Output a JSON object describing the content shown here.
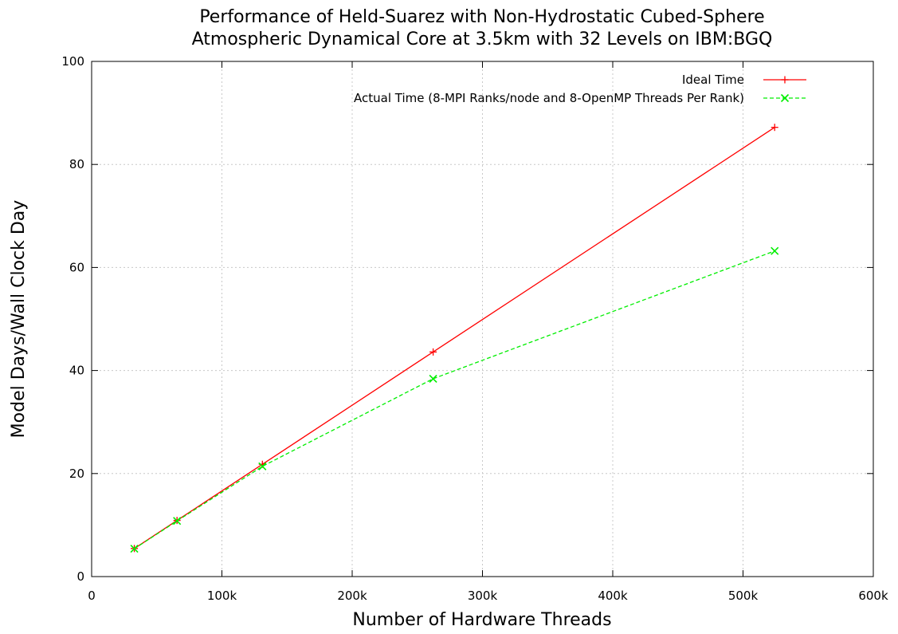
{
  "chart_data": {
    "type": "line",
    "title_lines": [
      "Performance of Held-Suarez with Non-Hydrostatic Cubed-Sphere",
      "Atmospheric Dynamical Core at 3.5km with 32 Levels on IBM:BGQ"
    ],
    "xlabel": "Number of Hardware Threads",
    "ylabel": "Model Days/Wall Clock Day",
    "xlim": [
      0,
      600000
    ],
    "ylim": [
      0,
      100
    ],
    "x_ticks": [
      0,
      100000,
      200000,
      300000,
      400000,
      500000,
      600000
    ],
    "x_tick_labels": [
      "0",
      "100k",
      "200k",
      "300k",
      "400k",
      "500k",
      "600k"
    ],
    "y_ticks": [
      0,
      20,
      40,
      60,
      80,
      100
    ],
    "y_tick_labels": [
      "0",
      "20",
      "40",
      "60",
      "80",
      "100"
    ],
    "grid": true,
    "legend_position": "top-right",
    "series": [
      {
        "name": "Ideal Time",
        "color": "#ff0000",
        "marker": "plus",
        "dash": "solid",
        "x": [
          32768,
          65536,
          131072,
          262144,
          524288
        ],
        "y": [
          5.45,
          10.9,
          21.8,
          43.6,
          87.2
        ]
      },
      {
        "name": "Actual Time (8-MPI Ranks/node and 8-OpenMP Threads Per Rank)",
        "color": "#00ee00",
        "marker": "cross",
        "dash": "dashed",
        "x": [
          32768,
          65536,
          131072,
          262144,
          524288
        ],
        "y": [
          5.4,
          10.8,
          21.4,
          38.4,
          63.2
        ]
      }
    ]
  }
}
